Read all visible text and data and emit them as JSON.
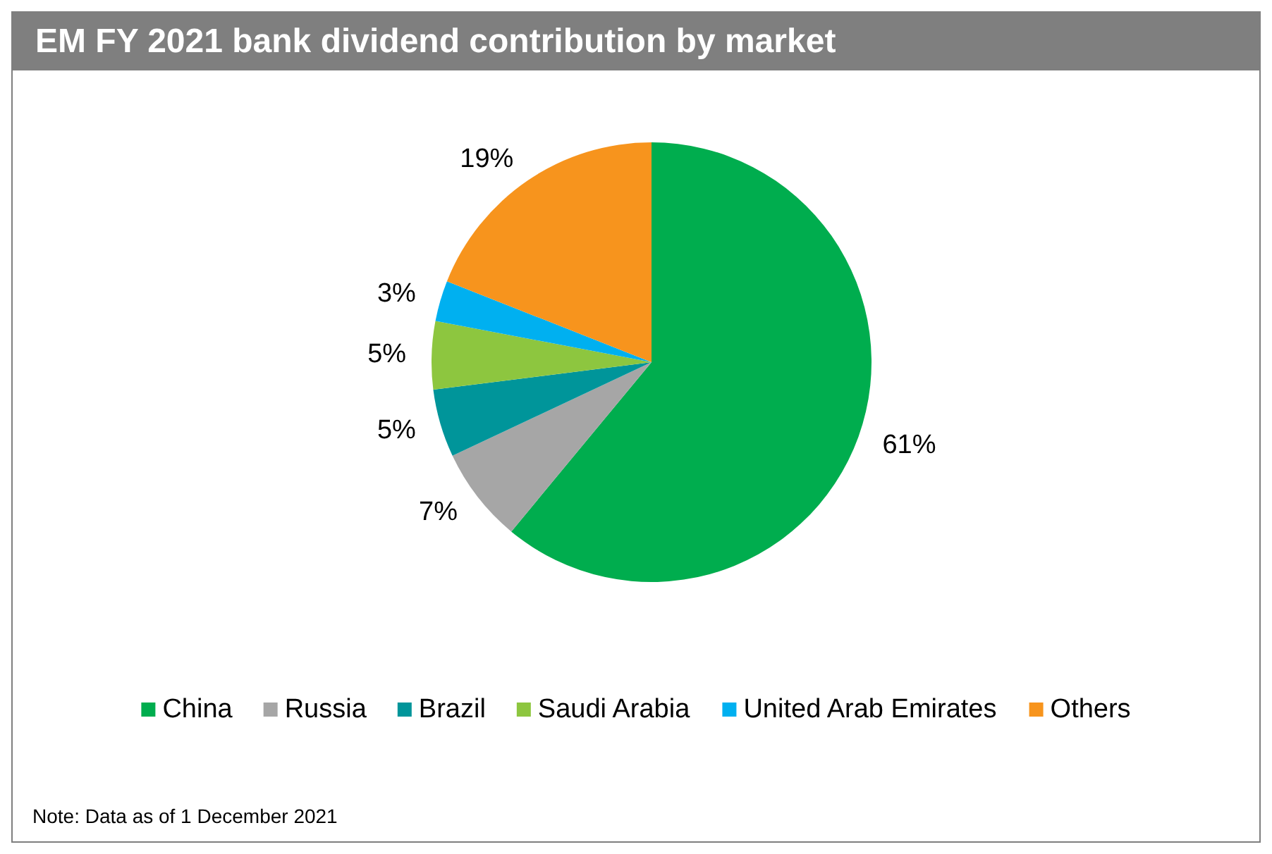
{
  "chart_data": {
    "type": "pie",
    "title": "EM FY 2021 bank dividend contribution by market",
    "categories": [
      "China",
      "Russia",
      "Brazil",
      "Saudi Arabia",
      "United Arab Emirates",
      "Others"
    ],
    "values": [
      61,
      7,
      5,
      5,
      3,
      19
    ],
    "colors": [
      "#00ad4e",
      "#a6a6a6",
      "#00959a",
      "#8dc63f",
      "#00b0f0",
      "#f7941d"
    ],
    "value_labels": [
      "61%",
      "7%",
      "5%",
      "5%",
      "3%",
      "19%"
    ],
    "legend": "bottom",
    "annotations": [
      "Note: Data as of 1 December 2021"
    ]
  }
}
